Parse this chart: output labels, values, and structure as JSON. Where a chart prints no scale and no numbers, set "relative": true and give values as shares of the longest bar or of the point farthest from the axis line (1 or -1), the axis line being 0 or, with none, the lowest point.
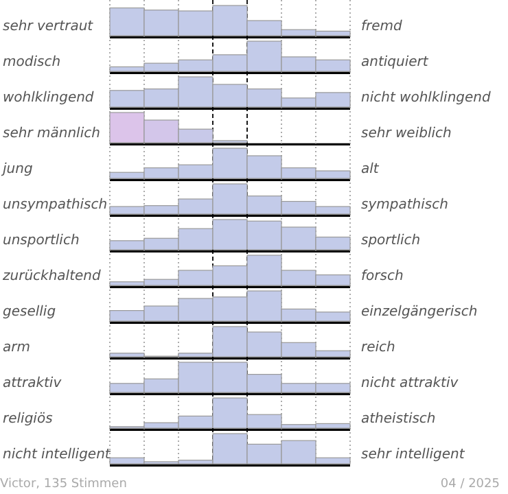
{
  "chart_data": [
    {
      "type": "bar",
      "relative": true,
      "categories": [
        null,
        null,
        null,
        null,
        null,
        null,
        null
      ],
      "values": [
        0.92,
        0.85,
        0.82,
        1,
        0.5,
        0.2,
        0.15
      ],
      "color": "#c3cbe9",
      "ylabel": "sehr vertraut",
      "y2label": "fremd",
      "grid": "x"
    },
    {
      "type": "bar",
      "relative": true,
      "categories": [
        null,
        null,
        null,
        null,
        null,
        null,
        null
      ],
      "values": [
        0.15,
        0.27,
        0.38,
        0.55,
        1,
        0.48,
        0.38
      ],
      "color": "#c3cbe9",
      "ylabel": "modisch",
      "y2label": "antiquiert",
      "grid": "x"
    },
    {
      "type": "bar",
      "relative": true,
      "categories": [
        null,
        null,
        null,
        null,
        null,
        null,
        null
      ],
      "values": [
        0.55,
        0.6,
        1,
        0.75,
        0.6,
        0.3,
        0.48
      ],
      "color": "#c3cbe9",
      "ylabel": "wohlklingend",
      "y2label": "nicht wohlklingend",
      "grid": "x"
    },
    {
      "type": "bar",
      "relative": true,
      "categories": [
        null,
        null,
        null,
        null,
        null,
        null,
        null
      ],
      "values": [
        1,
        0.75,
        0.45,
        0.07,
        0,
        0,
        0
      ],
      "colors": [
        "#dcc4ea",
        "#d3c6ea",
        "#c8c9e9",
        "#c3cbe9",
        "#c3cbe9",
        "#c3cbe9",
        "#c3cbe9"
      ],
      "ylabel": "sehr männlich",
      "y2label": "sehr weiblich",
      "grid": "x"
    },
    {
      "type": "bar",
      "relative": true,
      "categories": [
        null,
        null,
        null,
        null,
        null,
        null,
        null
      ],
      "values": [
        0.2,
        0.35,
        0.45,
        1,
        0.75,
        0.35,
        0.25
      ],
      "color": "#c3cbe9",
      "ylabel": "jung",
      "y2label": "alt",
      "grid": "x"
    },
    {
      "type": "bar",
      "relative": true,
      "categories": [
        null,
        null,
        null,
        null,
        null,
        null,
        null
      ],
      "values": [
        0.25,
        0.28,
        0.5,
        1,
        0.6,
        0.42,
        0.25
      ],
      "color": "#c3cbe9",
      "ylabel": "unsympathisch",
      "y2label": "sympathisch",
      "grid": "x"
    },
    {
      "type": "bar",
      "relative": true,
      "categories": [
        null,
        null,
        null,
        null,
        null,
        null,
        null
      ],
      "values": [
        0.3,
        0.38,
        0.7,
        1,
        0.95,
        0.75,
        0.42
      ],
      "color": "#c3cbe9",
      "ylabel": "unsportlich",
      "y2label": "sportlich",
      "grid": "x"
    },
    {
      "type": "bar",
      "relative": true,
      "categories": [
        null,
        null,
        null,
        null,
        null,
        null,
        null
      ],
      "values": [
        0.12,
        0.2,
        0.5,
        0.65,
        1,
        0.5,
        0.35
      ],
      "color": "#c3cbe9",
      "ylabel": "zurückhaltend",
      "y2label": "forsch",
      "grid": "x"
    },
    {
      "type": "bar",
      "relative": true,
      "categories": [
        null,
        null,
        null,
        null,
        null,
        null,
        null
      ],
      "values": [
        0.35,
        0.5,
        0.75,
        0.8,
        1,
        0.4,
        0.3
      ],
      "color": "#c3cbe9",
      "ylabel": "gesellig",
      "y2label": "einzelgängerisch",
      "grid": "x"
    },
    {
      "type": "bar",
      "relative": true,
      "categories": [
        null,
        null,
        null,
        null,
        null,
        null,
        null
      ],
      "values": [
        0.12,
        0.02,
        0.12,
        1,
        0.82,
        0.47,
        0.2
      ],
      "color": "#c3cbe9",
      "ylabel": "arm",
      "y2label": "reich",
      "grid": "x"
    },
    {
      "type": "bar",
      "relative": true,
      "categories": [
        null,
        null,
        null,
        null,
        null,
        null,
        null
      ],
      "values": [
        0.3,
        0.45,
        1,
        1,
        0.6,
        0.3,
        0.3
      ],
      "color": "#c3cbe9",
      "ylabel": "attraktiv",
      "y2label": "nicht attraktiv",
      "grid": "x"
    },
    {
      "type": "bar",
      "relative": true,
      "categories": [
        null,
        null,
        null,
        null,
        null,
        null,
        null
      ],
      "values": [
        0.05,
        0.18,
        0.4,
        1,
        0.45,
        0.12,
        0.15
      ],
      "color": "#c3cbe9",
      "ylabel": "religiös",
      "y2label": "atheistisch",
      "grid": "x"
    },
    {
      "type": "bar",
      "relative": true,
      "categories": [
        null,
        null,
        null,
        null,
        null,
        null,
        null
      ],
      "values": [
        0.2,
        0.07,
        0.12,
        1,
        0.65,
        0.77,
        0.2
      ],
      "color": "#c3cbe9",
      "ylabel": "nicht intelligent",
      "y2label": "sehr intelligent",
      "grid": "x",
      "annotations": [
        "Victor, 135 Stimmen",
        "04 / 2025"
      ]
    }
  ]
}
